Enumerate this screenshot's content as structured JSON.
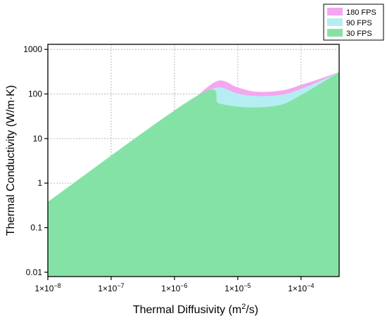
{
  "chart_data": {
    "type": "area",
    "xlabel": "Thermal Diffusivity (m²/s)",
    "ylabel": "Thermal Conductivity (W/m·K)",
    "xscale": "log",
    "yscale": "log",
    "xlim": [
      1e-08,
      0.0004
    ],
    "ylim": [
      0.008,
      1300
    ],
    "x_ticks": [
      {
        "value": 1e-08,
        "mantissa": "1×10",
        "exp": "−8"
      },
      {
        "value": 1e-07,
        "mantissa": "1×10",
        "exp": "−7"
      },
      {
        "value": 1e-06,
        "mantissa": "1×10",
        "exp": "−6"
      },
      {
        "value": 1e-05,
        "mantissa": "1×10",
        "exp": "−5"
      },
      {
        "value": 0.0001,
        "mantissa": "1×10",
        "exp": "−4"
      }
    ],
    "y_ticks": [
      {
        "value": 0.01,
        "label": "0.01"
      },
      {
        "value": 0.1,
        "label": "0.1"
      },
      {
        "value": 1,
        "label": "1"
      },
      {
        "value": 10,
        "label": "10"
      },
      {
        "value": 100,
        "label": "100"
      },
      {
        "value": 1000,
        "label": "1000"
      }
    ],
    "grid": true,
    "legend_position": "top-right",
    "series": [
      {
        "name": "180 FPS",
        "color": "#f4a6f0",
        "x": [
          2.3e-06,
          5e-06,
          1e-05,
          2e-05,
          5e-05,
          0.0001,
          0.0002,
          0.0004
        ],
        "y": [
          92,
          200,
          140,
          112,
          120,
          160,
          220,
          310
        ]
      },
      {
        "name": "90 FPS",
        "color": "#b5eef2",
        "x": [
          2.3e-06,
          5e-06,
          1e-05,
          2e-05,
          5e-05,
          0.0001,
          0.0002,
          0.0004
        ],
        "y": [
          92,
          140,
          102,
          90,
          96,
          130,
          195,
          310
        ]
      },
      {
        "name": "30 FPS",
        "color": "#85e2a6",
        "x": [
          1e-08,
          2.3e-06,
          5e-06,
          1e-05,
          2e-05,
          5e-05,
          0.0001,
          0.0002,
          0.0004
        ],
        "y": [
          0.38,
          92,
          62,
          52,
          50,
          58,
          95,
          170,
          310
        ]
      }
    ]
  }
}
